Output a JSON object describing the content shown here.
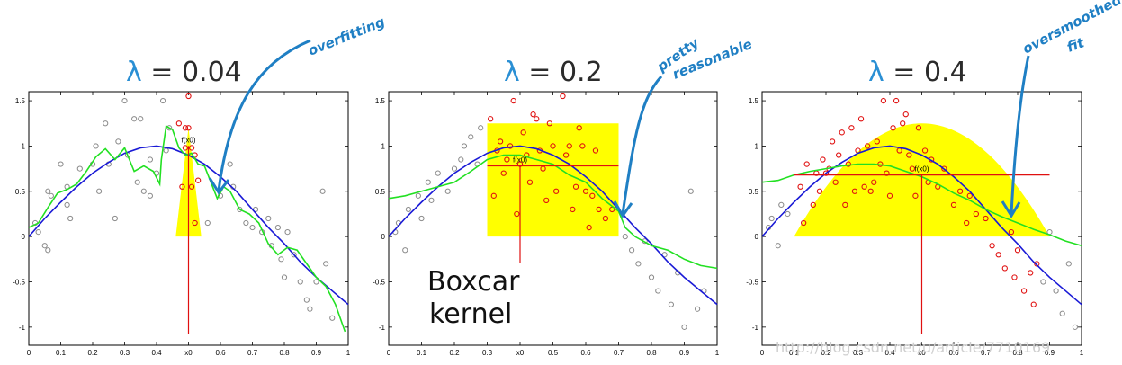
{
  "watermark": "http://blog.csdn.net/u/article/7710169",
  "annotations": {
    "overfitting": "overfitting",
    "pretty": "pretty",
    "reasonable": "reasonable",
    "oversmoothed": "oversmoothed",
    "fit": "fit",
    "boxcar_line1": "Boxcar",
    "boxcar_line2": "kernel"
  },
  "colors": {
    "true_curve": "#1a1ad6",
    "fit_curve": "#22e022",
    "kernel_fill": "#ffff00",
    "point_in_window": "#e01010",
    "point_other": "#8a8a8a",
    "marker_line": "#e01010",
    "annotation": "#1f7fc4"
  },
  "chart_data": [
    {
      "type": "scatter",
      "title": "λ = 0.04",
      "title_lambda": "λ",
      "title_rest": " = 0.04",
      "xlim": [
        0,
        1
      ],
      "ylim": [
        -1.2,
        1.6
      ],
      "x_ticks": [
        0,
        0.1,
        0.2,
        0.3,
        0.4,
        "x0",
        0.6,
        0.7,
        0.8,
        0.9,
        1
      ],
      "y_ticks": [
        -1,
        -0.5,
        0,
        0.5,
        1,
        1.5
      ],
      "x0": 0.5,
      "fx0_label": "f(x0)",
      "fx0": 1.0,
      "kernel": {
        "shape": "triangle",
        "center": 0.5,
        "halfwidth": 0.04,
        "height": 1.2
      },
      "true_curve": {
        "name": "true function",
        "x": [
          0,
          0.05,
          0.1,
          0.15,
          0.2,
          0.25,
          0.3,
          0.35,
          0.4,
          0.45,
          0.5,
          0.55,
          0.6,
          0.65,
          0.7,
          0.75,
          0.8,
          0.85,
          0.9,
          0.95,
          1.0
        ],
        "y": [
          0.0,
          0.2,
          0.38,
          0.55,
          0.7,
          0.82,
          0.92,
          0.98,
          1.0,
          0.97,
          0.9,
          0.8,
          0.66,
          0.5,
          0.3,
          0.1,
          -0.08,
          -0.28,
          -0.45,
          -0.6,
          -0.75
        ]
      },
      "fit_curve": {
        "name": "kernel fit",
        "x": [
          0,
          0.03,
          0.06,
          0.09,
          0.12,
          0.15,
          0.18,
          0.21,
          0.24,
          0.27,
          0.3,
          0.33,
          0.36,
          0.39,
          0.41,
          0.415,
          0.43,
          0.45,
          0.47,
          0.49,
          0.51,
          0.53,
          0.55,
          0.57,
          0.59,
          0.61,
          0.63,
          0.66,
          0.69,
          0.72,
          0.75,
          0.78,
          0.81,
          0.84,
          0.87,
          0.9,
          0.93,
          0.96,
          0.99
        ],
        "y": [
          0.1,
          0.15,
          0.32,
          0.48,
          0.52,
          0.58,
          0.72,
          0.88,
          0.97,
          0.85,
          0.98,
          0.72,
          0.78,
          0.72,
          0.58,
          0.85,
          1.22,
          1.18,
          0.98,
          0.9,
          0.92,
          0.8,
          0.78,
          0.6,
          0.42,
          0.55,
          0.5,
          0.3,
          0.25,
          0.15,
          -0.08,
          -0.2,
          -0.12,
          -0.15,
          -0.3,
          -0.45,
          -0.55,
          -0.75,
          -1.05
        ]
      },
      "points_window": [
        [
          0.47,
          1.25
        ],
        [
          0.49,
          1.2
        ],
        [
          0.5,
          1.55
        ],
        [
          0.5,
          1.2
        ],
        [
          0.49,
          0.98
        ],
        [
          0.51,
          0.98
        ],
        [
          0.52,
          0.9
        ],
        [
          0.48,
          0.55
        ],
        [
          0.51,
          0.55
        ],
        [
          0.53,
          0.62
        ],
        [
          0.52,
          0.15
        ]
      ],
      "points_other": [
        [
          0.02,
          0.15
        ],
        [
          0.03,
          0.05
        ],
        [
          0.05,
          -0.1
        ],
        [
          0.06,
          -0.15
        ],
        [
          0.06,
          0.5
        ],
        [
          0.07,
          0.45
        ],
        [
          0.1,
          0.8
        ],
        [
          0.12,
          0.55
        ],
        [
          0.12,
          0.35
        ],
        [
          0.13,
          0.2
        ],
        [
          0.16,
          0.75
        ],
        [
          0.2,
          0.8
        ],
        [
          0.21,
          1.0
        ],
        [
          0.22,
          0.5
        ],
        [
          0.24,
          1.25
        ],
        [
          0.25,
          0.8
        ],
        [
          0.27,
          0.2
        ],
        [
          0.28,
          1.05
        ],
        [
          0.3,
          1.5
        ],
        [
          0.31,
          0.9
        ],
        [
          0.33,
          1.3
        ],
        [
          0.34,
          0.6
        ],
        [
          0.35,
          1.3
        ],
        [
          0.36,
          0.5
        ],
        [
          0.38,
          0.85
        ],
        [
          0.38,
          0.45
        ],
        [
          0.4,
          0.7
        ],
        [
          0.42,
          1.5
        ],
        [
          0.43,
          0.95
        ],
        [
          0.44,
          1.2
        ],
        [
          0.56,
          0.15
        ],
        [
          0.6,
          0.45
        ],
        [
          0.63,
          0.8
        ],
        [
          0.64,
          0.55
        ],
        [
          0.66,
          0.3
        ],
        [
          0.68,
          0.15
        ],
        [
          0.7,
          0.1
        ],
        [
          0.71,
          0.3
        ],
        [
          0.73,
          0.05
        ],
        [
          0.75,
          0.2
        ],
        [
          0.76,
          -0.1
        ],
        [
          0.78,
          0.1
        ],
        [
          0.79,
          -0.25
        ],
        [
          0.8,
          -0.45
        ],
        [
          0.81,
          0.05
        ],
        [
          0.83,
          -0.2
        ],
        [
          0.85,
          -0.5
        ],
        [
          0.87,
          -0.7
        ],
        [
          0.88,
          -0.8
        ],
        [
          0.9,
          -0.5
        ],
        [
          0.92,
          0.5
        ],
        [
          0.93,
          -0.3
        ],
        [
          0.95,
          -0.9
        ]
      ]
    },
    {
      "type": "scatter",
      "title": "λ = 0.2",
      "title_lambda": "λ",
      "title_rest": " = 0.2",
      "xlim": [
        0,
        1
      ],
      "ylim": [
        -1.2,
        1.6
      ],
      "x_ticks": [
        0,
        0.1,
        0.2,
        0.3,
        "x0",
        0.5,
        0.6,
        0.7,
        0.8,
        0.9,
        1
      ],
      "y_ticks": [
        -1,
        -0.5,
        0,
        0.5,
        1,
        1.5
      ],
      "x0": 0.4,
      "fx0_label": "f(x0)",
      "fx0": 0.78,
      "kernel": {
        "shape": "box",
        "center": 0.5,
        "halfwidth": 0.2,
        "height": 1.25
      },
      "true_curve": {
        "name": "true function",
        "x": [
          0,
          0.05,
          0.1,
          0.15,
          0.2,
          0.25,
          0.3,
          0.35,
          0.4,
          0.45,
          0.5,
          0.55,
          0.6,
          0.65,
          0.7,
          0.75,
          0.8,
          0.85,
          0.9,
          0.95,
          1.0
        ],
        "y": [
          0.0,
          0.2,
          0.38,
          0.55,
          0.7,
          0.82,
          0.92,
          0.98,
          1.0,
          0.97,
          0.9,
          0.8,
          0.66,
          0.5,
          0.3,
          0.1,
          -0.08,
          -0.28,
          -0.45,
          -0.6,
          -0.75
        ]
      },
      "fit_curve": {
        "name": "kernel fit",
        "x": [
          0,
          0.05,
          0.1,
          0.15,
          0.2,
          0.25,
          0.3,
          0.35,
          0.4,
          0.45,
          0.5,
          0.55,
          0.6,
          0.65,
          0.7,
          0.72,
          0.75,
          0.8,
          0.85,
          0.9,
          0.95,
          1.0
        ],
        "y": [
          0.42,
          0.45,
          0.5,
          0.55,
          0.6,
          0.72,
          0.85,
          0.9,
          0.9,
          0.85,
          0.8,
          0.68,
          0.6,
          0.42,
          0.28,
          0.1,
          0.0,
          -0.1,
          -0.15,
          -0.25,
          -0.32,
          -0.35
        ]
      },
      "points_window": [
        [
          0.31,
          1.3
        ],
        [
          0.32,
          0.45
        ],
        [
          0.33,
          0.95
        ],
        [
          0.34,
          1.05
        ],
        [
          0.35,
          0.7
        ],
        [
          0.36,
          0.85
        ],
        [
          0.37,
          1.0
        ],
        [
          0.38,
          1.5
        ],
        [
          0.39,
          0.25
        ],
        [
          0.4,
          0.8
        ],
        [
          0.41,
          1.15
        ],
        [
          0.42,
          0.9
        ],
        [
          0.43,
          0.6
        ],
        [
          0.44,
          1.35
        ],
        [
          0.45,
          1.3
        ],
        [
          0.46,
          0.95
        ],
        [
          0.47,
          0.75
        ],
        [
          0.48,
          0.4
        ],
        [
          0.49,
          1.25
        ],
        [
          0.5,
          1.0
        ],
        [
          0.51,
          0.5
        ],
        [
          0.53,
          1.55
        ],
        [
          0.54,
          0.9
        ],
        [
          0.55,
          1.0
        ],
        [
          0.56,
          0.3
        ],
        [
          0.57,
          0.55
        ],
        [
          0.58,
          1.2
        ],
        [
          0.59,
          1.0
        ],
        [
          0.6,
          0.5
        ],
        [
          0.61,
          0.1
        ],
        [
          0.62,
          0.45
        ],
        [
          0.63,
          0.95
        ],
        [
          0.64,
          0.3
        ],
        [
          0.66,
          0.2
        ],
        [
          0.68,
          0.3
        ]
      ],
      "points_other": [
        [
          0.02,
          0.05
        ],
        [
          0.03,
          0.15
        ],
        [
          0.05,
          -0.15
        ],
        [
          0.06,
          0.3
        ],
        [
          0.09,
          0.45
        ],
        [
          0.1,
          0.2
        ],
        [
          0.12,
          0.6
        ],
        [
          0.13,
          0.4
        ],
        [
          0.15,
          0.7
        ],
        [
          0.18,
          0.5
        ],
        [
          0.2,
          0.75
        ],
        [
          0.22,
          0.85
        ],
        [
          0.23,
          1.0
        ],
        [
          0.25,
          1.1
        ],
        [
          0.27,
          0.8
        ],
        [
          0.28,
          1.2
        ],
        [
          0.72,
          0.0
        ],
        [
          0.74,
          -0.15
        ],
        [
          0.76,
          -0.3
        ],
        [
          0.78,
          -0.05
        ],
        [
          0.8,
          -0.45
        ],
        [
          0.82,
          -0.6
        ],
        [
          0.84,
          -0.2
        ],
        [
          0.86,
          -0.75
        ],
        [
          0.88,
          -0.4
        ],
        [
          0.9,
          -1.0
        ],
        [
          0.92,
          0.5
        ],
        [
          0.94,
          -0.8
        ],
        [
          0.96,
          -0.6
        ]
      ]
    },
    {
      "type": "scatter",
      "title": "λ = 0.4",
      "title_lambda": "λ",
      "title_rest": " = 0.4",
      "xlim": [
        0,
        1
      ],
      "ylim": [
        -1.2,
        1.6
      ],
      "x_ticks": [
        0,
        0.1,
        0.2,
        0.3,
        0.4,
        "x0",
        0.6,
        0.7,
        0.8,
        0.9,
        1
      ],
      "y_ticks": [
        -1,
        -0.5,
        0,
        0.5,
        1,
        1.5
      ],
      "x0": 0.5,
      "fx0_label": "f(x0)",
      "fx0": 0.68,
      "kernel": {
        "shape": "epanechnikov",
        "center": 0.5,
        "halfwidth": 0.4,
        "height": 1.25
      },
      "true_curve": {
        "name": "true function",
        "x": [
          0,
          0.05,
          0.1,
          0.15,
          0.2,
          0.25,
          0.3,
          0.35,
          0.4,
          0.45,
          0.5,
          0.55,
          0.6,
          0.65,
          0.7,
          0.75,
          0.8,
          0.85,
          0.9,
          0.95,
          1.0
        ],
        "y": [
          0.0,
          0.2,
          0.38,
          0.55,
          0.7,
          0.82,
          0.92,
          0.98,
          1.0,
          0.97,
          0.9,
          0.8,
          0.66,
          0.5,
          0.3,
          0.1,
          -0.08,
          -0.28,
          -0.45,
          -0.6,
          -0.75
        ]
      },
      "fit_curve": {
        "name": "kernel fit",
        "x": [
          0,
          0.05,
          0.1,
          0.15,
          0.2,
          0.25,
          0.3,
          0.35,
          0.4,
          0.45,
          0.5,
          0.55,
          0.6,
          0.65,
          0.7,
          0.75,
          0.8,
          0.85,
          0.9,
          0.95,
          1.0
        ],
        "y": [
          0.6,
          0.62,
          0.68,
          0.72,
          0.75,
          0.78,
          0.8,
          0.8,
          0.78,
          0.72,
          0.66,
          0.58,
          0.48,
          0.4,
          0.3,
          0.22,
          0.15,
          0.08,
          0.02,
          -0.05,
          -0.1
        ]
      },
      "points_window": [
        [
          0.12,
          0.55
        ],
        [
          0.13,
          0.15
        ],
        [
          0.14,
          0.8
        ],
        [
          0.16,
          0.35
        ],
        [
          0.17,
          0.7
        ],
        [
          0.18,
          0.5
        ],
        [
          0.19,
          0.85
        ],
        [
          0.2,
          0.7
        ],
        [
          0.21,
          0.75
        ],
        [
          0.22,
          1.05
        ],
        [
          0.23,
          0.6
        ],
        [
          0.24,
          0.9
        ],
        [
          0.25,
          1.15
        ],
        [
          0.26,
          0.35
        ],
        [
          0.27,
          0.8
        ],
        [
          0.28,
          1.2
        ],
        [
          0.29,
          0.5
        ],
        [
          0.3,
          0.95
        ],
        [
          0.31,
          1.3
        ],
        [
          0.32,
          0.55
        ],
        [
          0.33,
          1.0
        ],
        [
          0.34,
          0.5
        ],
        [
          0.35,
          0.6
        ],
        [
          0.36,
          1.05
        ],
        [
          0.37,
          0.8
        ],
        [
          0.38,
          1.5
        ],
        [
          0.39,
          0.7
        ],
        [
          0.4,
          0.45
        ],
        [
          0.41,
          1.2
        ],
        [
          0.42,
          1.5
        ],
        [
          0.43,
          0.95
        ],
        [
          0.44,
          1.25
        ],
        [
          0.45,
          1.35
        ],
        [
          0.46,
          0.9
        ],
        [
          0.47,
          0.75
        ],
        [
          0.48,
          0.45
        ],
        [
          0.49,
          1.2
        ],
        [
          0.51,
          0.95
        ],
        [
          0.52,
          0.6
        ],
        [
          0.53,
          0.85
        ],
        [
          0.55,
          0.55
        ],
        [
          0.57,
          0.75
        ],
        [
          0.6,
          0.35
        ],
        [
          0.62,
          0.5
        ],
        [
          0.64,
          0.15
        ],
        [
          0.65,
          0.45
        ],
        [
          0.67,
          0.25
        ],
        [
          0.7,
          0.2
        ],
        [
          0.72,
          -0.1
        ],
        [
          0.74,
          -0.2
        ],
        [
          0.76,
          -0.35
        ],
        [
          0.78,
          0.05
        ],
        [
          0.79,
          -0.45
        ],
        [
          0.8,
          -0.15
        ],
        [
          0.82,
          -0.6
        ],
        [
          0.84,
          -0.4
        ],
        [
          0.85,
          -0.75
        ],
        [
          0.86,
          -0.3
        ]
      ],
      "points_other": [
        [
          0.02,
          0.1
        ],
        [
          0.03,
          0.2
        ],
        [
          0.05,
          -0.1
        ],
        [
          0.06,
          0.35
        ],
        [
          0.08,
          0.25
        ],
        [
          0.88,
          -0.5
        ],
        [
          0.9,
          0.05
        ],
        [
          0.92,
          -0.6
        ],
        [
          0.94,
          -0.85
        ],
        [
          0.96,
          -0.3
        ],
        [
          0.98,
          -1.0
        ]
      ]
    }
  ]
}
